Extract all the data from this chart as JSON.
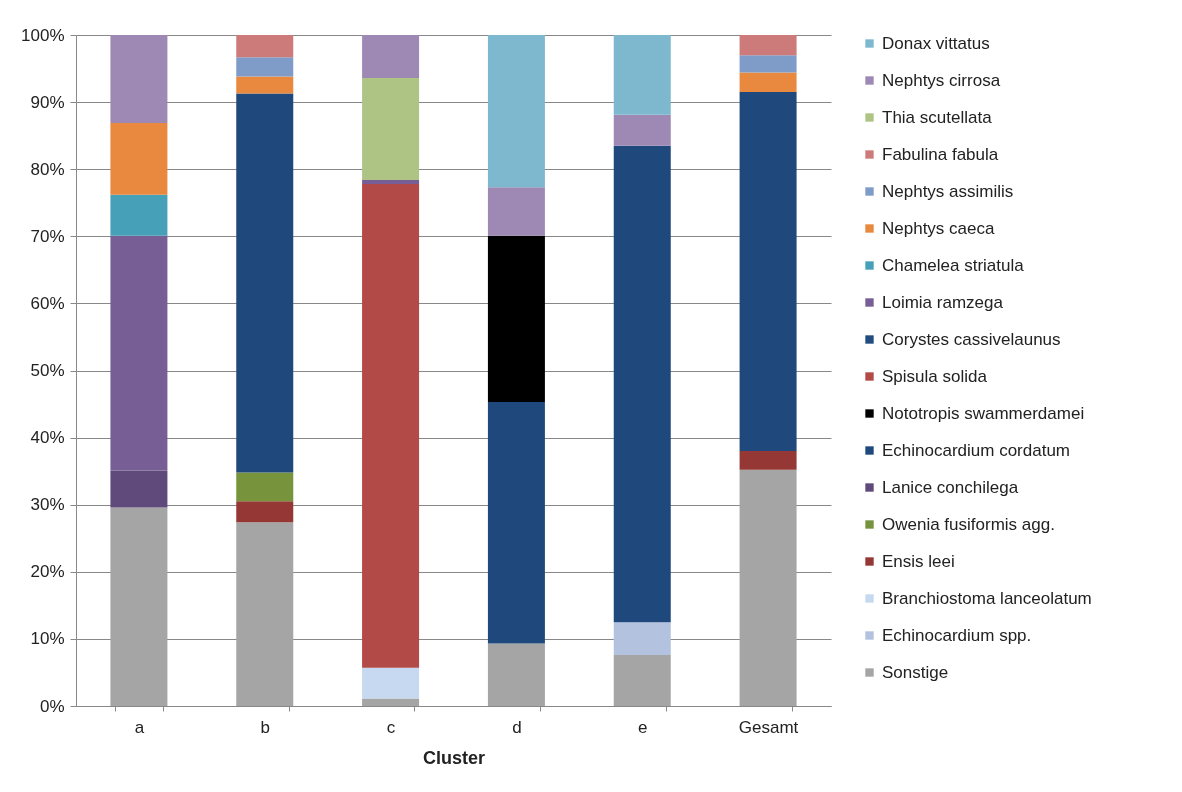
{
  "chart_data": {
    "type": "bar",
    "xlabel": "Cluster",
    "categories": [
      "a",
      "b",
      "c",
      "d",
      "e",
      "Gesamt"
    ],
    "stacked": true,
    "ylim": [
      0,
      100
    ],
    "yticks": [
      {
        "value": 0,
        "label": "0%"
      },
      {
        "value": 10,
        "label": "10%"
      },
      {
        "value": 20,
        "label": "20%"
      },
      {
        "value": 30,
        "label": "30%"
      },
      {
        "value": 40,
        "label": "40%"
      },
      {
        "value": 50,
        "label": "50%"
      },
      {
        "value": 60,
        "label": "60%"
      },
      {
        "value": 70,
        "label": "70%"
      },
      {
        "value": 80,
        "label": "80%"
      },
      {
        "value": 90,
        "label": "90%"
      },
      {
        "value": 100,
        "label": "100%"
      }
    ],
    "grid": "y",
    "legend": "right",
    "series": [
      {
        "name": "Sonstige",
        "color": "#a5a5a5",
        "values": [
          29.6,
          27.4,
          1.1,
          9.3,
          7.6,
          35.2
        ]
      },
      {
        "name": "Echinocardium spp.",
        "color": "#b3c2de",
        "values": [
          null,
          null,
          null,
          null,
          4.9,
          null
        ]
      },
      {
        "name": "Branchiostoma lanceolatum",
        "color": "#c6d9f0",
        "values": [
          null,
          null,
          4.6,
          null,
          null,
          null
        ]
      },
      {
        "name": "Ensis leei",
        "color": "#953735",
        "values": [
          null,
          3.1,
          null,
          null,
          null,
          2.8
        ]
      },
      {
        "name": "Owenia fusiformis agg.",
        "color": "#77933c",
        "values": [
          null,
          4.3,
          null,
          null,
          null,
          null
        ]
      },
      {
        "name": "Lanice conchilega",
        "color": "#604a7b",
        "values": [
          5.5,
          null,
          null,
          null,
          null,
          null
        ]
      },
      {
        "name": "Echinocardium cordatum",
        "color": "#1f497d",
        "values": [
          null,
          56.5,
          null,
          36.0,
          71.0,
          53.5
        ]
      },
      {
        "name": "Nototropis swammerdamei",
        "color": "#000000",
        "values": [
          null,
          null,
          null,
          24.8,
          null,
          null
        ]
      },
      {
        "name": "Spisula solida",
        "color": "#b24a47",
        "values": [
          null,
          null,
          72.1,
          null,
          null,
          null
        ]
      },
      {
        "name": "Corystes cassivelaunus",
        "color": "#224d80",
        "values": [
          null,
          null,
          null,
          null,
          null,
          null
        ]
      },
      {
        "name": "Loimia ramzega",
        "color": "#775f96",
        "values": [
          35.0,
          null,
          0.6,
          null,
          null,
          null
        ]
      },
      {
        "name": "Chamelea striatula",
        "color": "#45a0b8",
        "values": [
          6.1,
          null,
          null,
          null,
          null,
          null
        ]
      },
      {
        "name": "Nephtys caeca",
        "color": "#e8893f",
        "values": [
          10.7,
          2.5,
          null,
          null,
          null,
          2.9
        ]
      },
      {
        "name": "Nephtys assimilis",
        "color": "#7f9bc8",
        "values": [
          null,
          2.9,
          null,
          null,
          null,
          2.6
        ]
      },
      {
        "name": "Fabulina fabula",
        "color": "#cd7b7a",
        "values": [
          null,
          3.3,
          null,
          null,
          null,
          3.0
        ]
      },
      {
        "name": "Thia scutellata",
        "color": "#adc485",
        "values": [
          null,
          null,
          15.2,
          null,
          null,
          null
        ]
      },
      {
        "name": "Nephtys cirrosa",
        "color": "#9d89b3",
        "values": [
          13.1,
          null,
          6.4,
          7.2,
          4.6,
          null
        ]
      },
      {
        "name": "Donax vittatus",
        "color": "#7db8cf",
        "values": [
          null,
          null,
          null,
          22.7,
          11.9,
          null
        ]
      }
    ]
  }
}
